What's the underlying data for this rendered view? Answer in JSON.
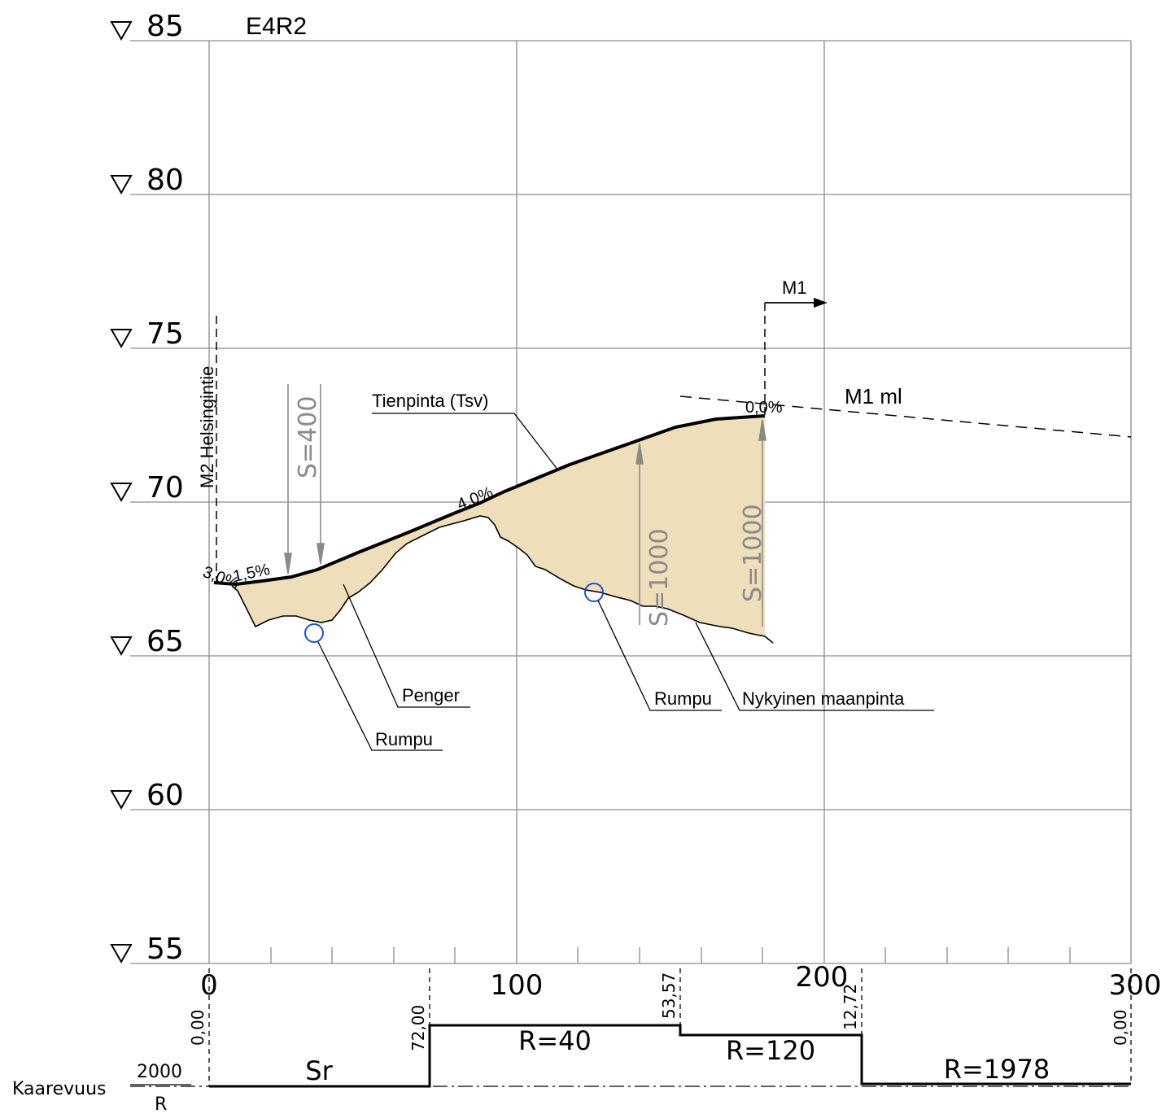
{
  "title": "E4R2",
  "elevations": [
    "85",
    "80",
    "75",
    "70",
    "65",
    "60",
    "55"
  ],
  "stations": [
    "0",
    "100",
    "200",
    "300"
  ],
  "labels": {
    "tienpinta": "Tienpinta (Tsv)",
    "penger": "Penger",
    "rumpu1": "Rumpu",
    "rumpu2": "Rumpu",
    "nykyinen": "Nykyinen maanpinta",
    "m1": "M1",
    "m1ml": "M1 ml",
    "m2": "M2 Helsingintie"
  },
  "vertical_curves": [
    "S=400",
    "S=1000",
    "S=1000"
  ],
  "grades": [
    "3,0%",
    "1,5%",
    "4,0%",
    "0,0%"
  ],
  "curvature": {
    "label": "Kaarevuus",
    "scale_top": "2000",
    "scale_bottom": "R",
    "segments": [
      "Sr",
      "R=40",
      "R=120",
      "R=1978"
    ],
    "values": [
      "0,00",
      "72,00",
      "53,57",
      "12,72",
      "0,00"
    ]
  },
  "colors": {
    "fill": "#EEDFBA",
    "grid": "#8c8c8c",
    "culvert": "#1a4fd6",
    "vc_gray": "#8a8a8a"
  }
}
